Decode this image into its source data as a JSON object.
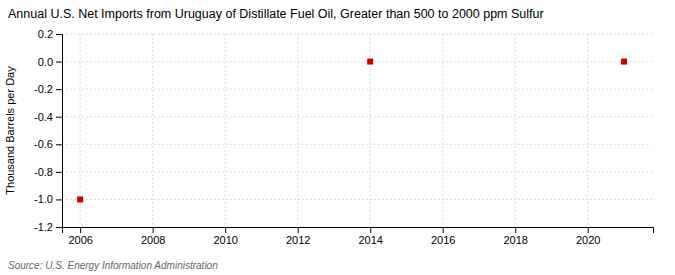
{
  "chart_data": {
    "type": "scatter",
    "title": "Annual U.S. Net Imports from Uruguay of Distillate Fuel Oil, Greater than 500 to 2000 ppm Sulfur",
    "y_label": "Thousand Barrels per Day",
    "source": "Source: U.S. Energy Information Administration",
    "x": [
      2006,
      2014,
      2021
    ],
    "values": [
      -1.0,
      0.0,
      0.0
    ],
    "color": "#CC0000",
    "marker": "square",
    "xlim": [
      2005.5,
      2021.8
    ],
    "ylim": [
      -1.2,
      0.2
    ],
    "xticks": [
      2006,
      2008,
      2010,
      2012,
      2014,
      2016,
      2018,
      2020
    ],
    "yticks": [
      0.2,
      {
        "value": 0.0,
        "label": "0.0"
      },
      -0.2,
      -0.4,
      -0.6,
      -0.8,
      {
        "value": -1.0,
        "label": "-1.0"
      },
      -1.2
    ],
    "grid": true
  }
}
